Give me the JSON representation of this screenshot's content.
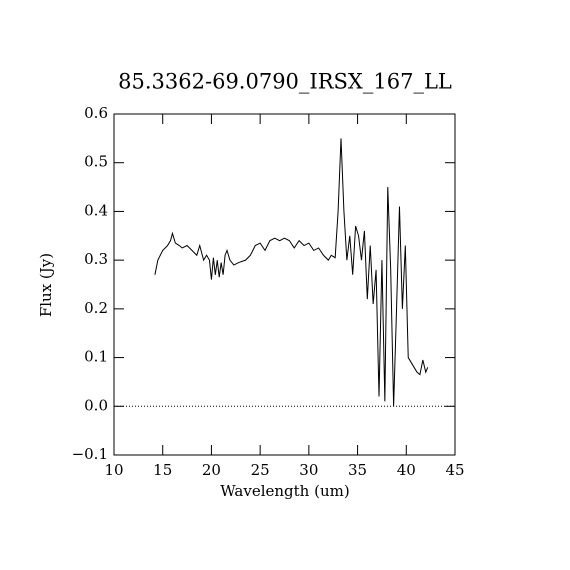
{
  "chart_data": {
    "type": "line",
    "title": "85.3362-69.0790_IRSX_167_LL",
    "x_label": "Wavelength (um)",
    "y_label": "Flux (Jy)",
    "xlim": [
      10,
      45
    ],
    "ylim": [
      -0.1,
      0.6
    ],
    "xticks": [
      10,
      15,
      20,
      25,
      30,
      35,
      40,
      45
    ],
    "yticks": [
      {
        "value": -0.1,
        "label": "−0.1"
      },
      {
        "value": 0,
        "label": "0.0"
      },
      0.1,
      0.2,
      0.3,
      0.4,
      0.5,
      0.6
    ],
    "hlines": [
      0
    ],
    "series": [
      {
        "color": "#000000",
        "x": [
          14.2,
          14.5,
          15.0,
          15.5,
          15.8,
          16.0,
          16.3,
          16.7,
          17.0,
          17.5,
          18.0,
          18.5,
          18.8,
          19.2,
          19.5,
          19.8,
          20.0,
          20.2,
          20.4,
          20.6,
          20.8,
          21.0,
          21.2,
          21.4,
          21.6,
          21.9,
          22.3,
          22.8,
          23.5,
          24.0,
          24.5,
          25.0,
          25.5,
          26.0,
          26.5,
          27.0,
          27.5,
          28.0,
          28.5,
          29.0,
          29.5,
          30.0,
          30.5,
          31.0,
          31.5,
          32.0,
          32.3,
          32.7,
          33.0,
          33.3,
          33.6,
          33.9,
          34.2,
          34.5,
          34.8,
          35.1,
          35.4,
          35.7,
          36.0,
          36.3,
          36.6,
          36.9,
          37.2,
          37.5,
          37.8,
          38.1,
          38.4,
          38.7,
          39.0,
          39.3,
          39.6,
          39.9,
          40.2,
          40.5,
          40.8,
          41.1,
          41.4,
          41.7,
          42.0,
          42.2
        ],
        "values": [
          0.27,
          0.3,
          0.32,
          0.33,
          0.34,
          0.355,
          0.335,
          0.33,
          0.325,
          0.33,
          0.32,
          0.31,
          0.33,
          0.3,
          0.31,
          0.3,
          0.26,
          0.305,
          0.27,
          0.3,
          0.265,
          0.295,
          0.27,
          0.31,
          0.32,
          0.3,
          0.29,
          0.295,
          0.3,
          0.31,
          0.33,
          0.335,
          0.32,
          0.34,
          0.345,
          0.34,
          0.345,
          0.34,
          0.325,
          0.34,
          0.33,
          0.335,
          0.32,
          0.325,
          0.31,
          0.3,
          0.31,
          0.305,
          0.4,
          0.55,
          0.4,
          0.3,
          0.35,
          0.27,
          0.37,
          0.35,
          0.3,
          0.36,
          0.22,
          0.33,
          0.21,
          0.28,
          0.02,
          0.3,
          0.01,
          0.45,
          0.28,
          0.0,
          0.2,
          0.41,
          0.2,
          0.33,
          0.1,
          0.09,
          0.08,
          0.07,
          0.065,
          0.095,
          0.07,
          0.08
        ]
      }
    ]
  }
}
